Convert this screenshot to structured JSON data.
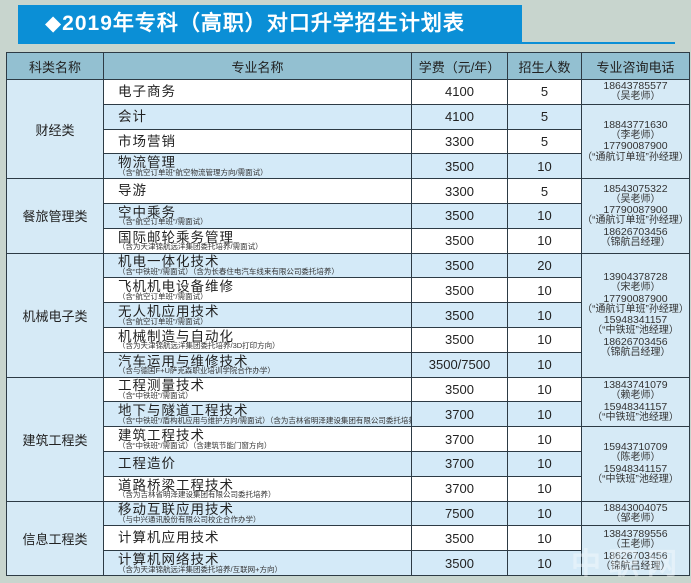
{
  "title": "◆2019年专科（高职）对口升学招生计划表",
  "headers": [
    "科类名称",
    "专业名称",
    "学费（元/年）",
    "招生人数",
    "专业咨询电话"
  ],
  "categories": [
    {
      "name": "财经类",
      "rows": 4
    },
    {
      "name": "餐旅管理类",
      "rows": 3
    },
    {
      "name": "机械电子类",
      "rows": 5
    },
    {
      "name": "建筑工程类",
      "rows": 5
    },
    {
      "name": "信息工程类",
      "rows": 3
    }
  ],
  "majors": [
    {
      "name": "电子商务",
      "note": "",
      "fee": "4100",
      "count": "5"
    },
    {
      "name": "会计",
      "note": "",
      "fee": "4100",
      "count": "5"
    },
    {
      "name": "市场营销",
      "note": "",
      "fee": "3300",
      "count": "5"
    },
    {
      "name": "物流管理",
      "note": "（含“航空订单班”航空物流管理方向/需面试）",
      "fee": "3500",
      "count": "10"
    },
    {
      "name": "导游",
      "note": "",
      "fee": "3300",
      "count": "5"
    },
    {
      "name": "空中乘务",
      "note": "（含“航空订单班”/需面试）",
      "fee": "3500",
      "count": "10"
    },
    {
      "name": "国际邮轮乘务管理",
      "note": "（含为天津锦航远洋集团委托培养/需面试）",
      "fee": "3500",
      "count": "10"
    },
    {
      "name": "机电一体化技术",
      "note": "（含“中铁班”/需面试）（含为长春住电汽车线束有限公司委托培养）",
      "fee": "3500",
      "count": "20"
    },
    {
      "name": "飞机机电设备维修",
      "note": "（含“航空订单班”/需面试）",
      "fee": "3500",
      "count": "10"
    },
    {
      "name": "无人机应用技术",
      "note": "（含“航空订单班”/需面试）",
      "fee": "3500",
      "count": "10"
    },
    {
      "name": "机械制造与自动化",
      "note": "（含为天津锦航远洋集团委托培养/3D打印方向）",
      "fee": "3500",
      "count": "10"
    },
    {
      "name": "汽车运用与维修技术",
      "note": "（含与德国F+U萨克森职业培训学院合作办学）",
      "fee": "3500/7500",
      "count": "10"
    },
    {
      "name": "工程测量技术",
      "note": "（含“中铁班”/需面试）",
      "fee": "3500",
      "count": "10"
    },
    {
      "name": "地下与隧道工程技术",
      "note": "（含“中铁班”/盾构机应用与维护方向/需面试）（含为吉林省明泽建设集团有限公司委托培养）",
      "fee": "3700",
      "count": "10"
    },
    {
      "name": "建筑工程技术",
      "note": "（含“中铁班”/需面试）（含建筑节能门窗方向）",
      "fee": "3700",
      "count": "10"
    },
    {
      "name": "工程造价",
      "note": "",
      "fee": "3700",
      "count": "10"
    },
    {
      "name": "道路桥梁工程技术",
      "note": "（含为吉林省明泽建设集团有限公司委托培养）",
      "fee": "3700",
      "count": "10"
    },
    {
      "name": "移动互联应用技术",
      "note": "（与中兴通讯股份有限公司校企合作办学）",
      "fee": "7500",
      "count": "10"
    },
    {
      "name": "计算机应用技术",
      "note": "",
      "fee": "3500",
      "count": "10"
    },
    {
      "name": "计算机网络技术",
      "note": "（含为天津锦航远洋集团委托培养/互联网+方向）",
      "fee": "3500",
      "count": "10"
    }
  ],
  "phones": [
    {
      "rows": 1,
      "contacts": [
        {
          "phone": "18643785577",
          "person": "（吴老师）"
        }
      ]
    },
    {
      "rows": 3,
      "contacts": [
        {
          "phone": "18843771630",
          "person": "（李老师）"
        },
        {
          "phone": "17790087900",
          "person": "（“通航订单班”孙经理）"
        }
      ]
    },
    {
      "rows": 3,
      "contacts": [
        {
          "phone": "18543075322",
          "person": "（吴老师）"
        },
        {
          "phone": "17790087900",
          "person": "（“通航订单班”孙经理）"
        },
        {
          "phone": "18626703456",
          "person": "（锦航吕经理）"
        }
      ]
    },
    {
      "rows": 5,
      "contacts": [
        {
          "phone": "13904378728",
          "person": "（宋老师）"
        },
        {
          "phone": "17790087900",
          "person": "（“通航订单班”孙经理）"
        },
        {
          "phone": "15948341157",
          "person": "（“中铁班”池经理）"
        },
        {
          "phone": "18626703456",
          "person": "（锦航吕经理）"
        }
      ]
    },
    {
      "rows": 2,
      "contacts": [
        {
          "phone": "13843741079",
          "person": "（赖老师）"
        },
        {
          "phone": "15948341157",
          "person": "（“中铁班”池经理）"
        }
      ]
    },
    {
      "rows": 3,
      "contacts": [
        {
          "phone": "15943710709",
          "person": "（陈老师）"
        },
        {
          "phone": "15948341157",
          "person": "（“中铁班”池经理）"
        }
      ]
    },
    {
      "rows": 1,
      "contacts": [
        {
          "phone": "18843004075",
          "person": "（邹老师）"
        }
      ]
    },
    {
      "rows": 2,
      "contacts": [
        {
          "phone": "13843789556",
          "person": "（王老师）"
        },
        {
          "phone": "18626703456",
          "person": "（锦航吕经理）"
        }
      ]
    }
  ],
  "watermark": "中职网",
  "colors": {
    "title_bar": "#0b8fd6",
    "header": "#93c0d1",
    "row_alt": "#d4eaf8",
    "background": "#c8d5ce"
  }
}
